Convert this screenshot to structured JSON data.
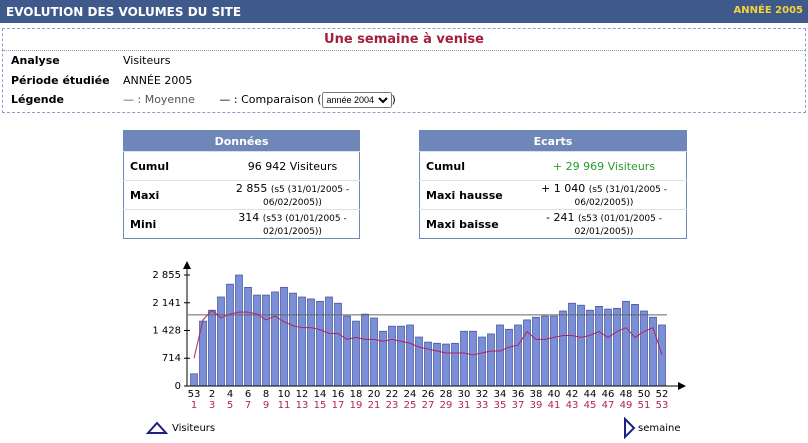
{
  "header": {
    "title": "EVOLUTION DES VOLUMES DU SITE",
    "year": "ANNÉE 2005"
  },
  "subtitle": "Une semaine à venise",
  "info": {
    "rows": [
      [
        "Analyse",
        "Visiteurs"
      ],
      [
        "Période étudiée",
        "ANNÉE 2005"
      ]
    ],
    "legend_label": "Légende",
    "mean_label": "— : Moyenne",
    "comparison_label": "— : Comparaison (",
    "comparison_close": ")",
    "select_value": "année 2004"
  },
  "tables": [
    {
      "title": "Données",
      "rows": [
        {
          "label": "Cumul",
          "value": "96 942 Visiteurs",
          "detail": ""
        },
        {
          "label": "Maxi",
          "value": "2 855",
          "detail": "(s5 (31/01/2005 - 06/02/2005))"
        },
        {
          "label": "Mini",
          "value": "314",
          "detail": "(s53 (01/01/2005 - 02/01/2005))"
        }
      ]
    },
    {
      "title": "Ecarts",
      "rows": [
        {
          "label": "Cumul",
          "value": "+ 29 969 Visiteurs",
          "detail": ""
        },
        {
          "label": "Maxi hausse",
          "value": "+ 1 040",
          "detail": "(s5 (31/01/2005 - 06/02/2005))"
        },
        {
          "label": "Maxi baisse",
          "value": "- 241",
          "detail": "(s53 (01/01/2005 - 02/01/2005))"
        }
      ]
    }
  ],
  "chart_data": {
    "type": "bar",
    "categories": [
      "53",
      null,
      "2",
      null,
      "4",
      null,
      "6",
      null,
      "8",
      null,
      "10",
      null,
      "12",
      null,
      "14",
      null,
      "16",
      null,
      "18",
      null,
      "20",
      null,
      "22",
      null,
      "24",
      null,
      "26",
      null,
      "28",
      null,
      "30",
      null,
      "32",
      null,
      "34",
      null,
      "36",
      null,
      "38",
      null,
      "40",
      null,
      "42",
      null,
      "44",
      null,
      "46",
      null,
      "48",
      null,
      "50",
      null,
      "52"
    ],
    "categories2": [
      "1",
      null,
      "3",
      null,
      "5",
      null,
      "7",
      null,
      "9",
      null,
      "11",
      null,
      "13",
      null,
      "15",
      null,
      "17",
      null,
      "19",
      null,
      "21",
      null,
      "23",
      null,
      "25",
      null,
      "27",
      null,
      "29",
      null,
      "31",
      null,
      "33",
      null,
      "35",
      null,
      "37",
      null,
      "39",
      null,
      "41",
      null,
      "43",
      null,
      "45",
      null,
      "47",
      null,
      "49",
      null,
      "51",
      null,
      "53"
    ],
    "series": [
      {
        "name": "Visiteurs",
        "color": "#7b8fd8",
        "values": [
          314,
          1670,
          1950,
          2290,
          2620,
          2855,
          2540,
          2340,
          2340,
          2420,
          2540,
          2390,
          2290,
          2240,
          2180,
          2290,
          2130,
          1800,
          1670,
          1850,
          1750,
          1410,
          1540,
          1540,
          1570,
          1260,
          1130,
          1100,
          1080,
          1100,
          1410,
          1410,
          1260,
          1340,
          1570,
          1460,
          1570,
          1700,
          1770,
          1800,
          1800,
          1930,
          2130,
          2080,
          1950,
          2050,
          1980,
          2000,
          2180,
          2100,
          1930,
          1770,
          1570
        ]
      },
      {
        "name": "Comparaison",
        "color": "#b0245a",
        "values": [
          714,
          1700,
          1950,
          1750,
          1850,
          1900,
          1900,
          1850,
          1700,
          1800,
          1650,
          1550,
          1500,
          1500,
          1450,
          1350,
          1350,
          1200,
          1250,
          1200,
          1200,
          1150,
          1200,
          1150,
          1100,
          1000,
          950,
          900,
          850,
          850,
          850,
          800,
          850,
          900,
          900,
          1000,
          1050,
          1400,
          1200,
          1200,
          1250,
          1300,
          1300,
          1250,
          1300,
          1400,
          1250,
          1400,
          1500,
          1250,
          1400,
          1500,
          800
        ]
      }
    ],
    "mean": 1829,
    "mean_color": "#666666",
    "ylim": [
      0,
      2855
    ],
    "yticks": [
      0,
      714,
      {
        "value": 1428,
        "label": "1 428"
      },
      {
        "value": 2141,
        "label": "2 141"
      },
      {
        "value": 2855,
        "label": "2 855"
      }
    ],
    "legend": [
      "Visiteurs",
      "semaine"
    ]
  }
}
